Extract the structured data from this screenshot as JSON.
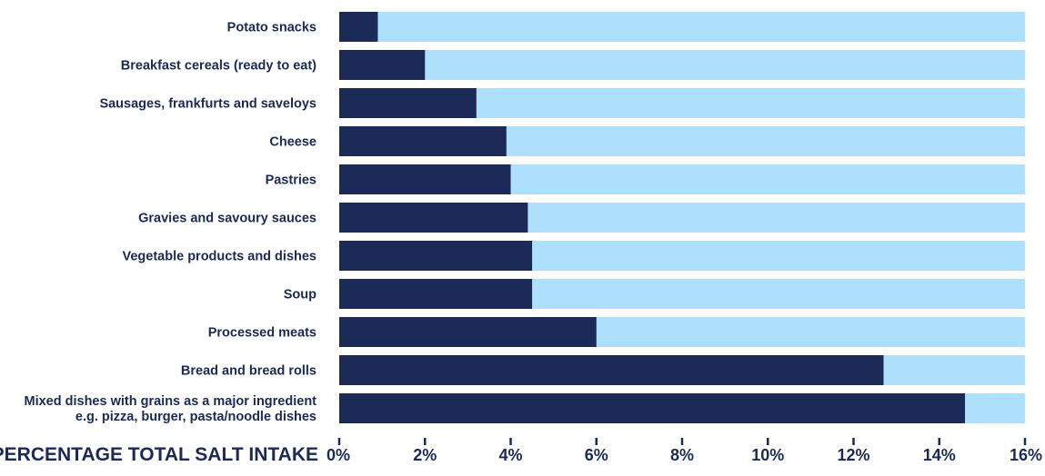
{
  "chart_data": {
    "type": "bar",
    "orientation": "horizontal",
    "stacked_background": true,
    "categories": [
      [
        "Potato snacks"
      ],
      [
        "Breakfast cereals (ready to eat)"
      ],
      [
        "Sausages, frankfurts and saveloys"
      ],
      [
        "Cheese"
      ],
      [
        "Pastries"
      ],
      [
        "Gravies and savoury sauces"
      ],
      [
        "Vegetable products and dishes"
      ],
      [
        "Soup"
      ],
      [
        "Processed meats"
      ],
      [
        "Bread and bread rolls"
      ],
      [
        "Mixed dishes with grains as a major ingredient",
        "e.g. pizza, burger, pasta/noodle dishes"
      ]
    ],
    "values": [
      0.9,
      2.0,
      3.2,
      3.9,
      4.0,
      4.4,
      4.5,
      4.5,
      6.0,
      12.7,
      14.6
    ],
    "xlim": [
      0,
      16
    ],
    "xticks": [
      0,
      2,
      4,
      6,
      8,
      10,
      12,
      14,
      16
    ],
    "tick_suffix": "%",
    "xlabel": "PERCENTAGE TOTAL SALT INTAKE",
    "title": "",
    "grid": false,
    "colors": {
      "bar": "#1b2a56",
      "background_bar": "#aee0fb",
      "text": "#1b2a56"
    }
  }
}
